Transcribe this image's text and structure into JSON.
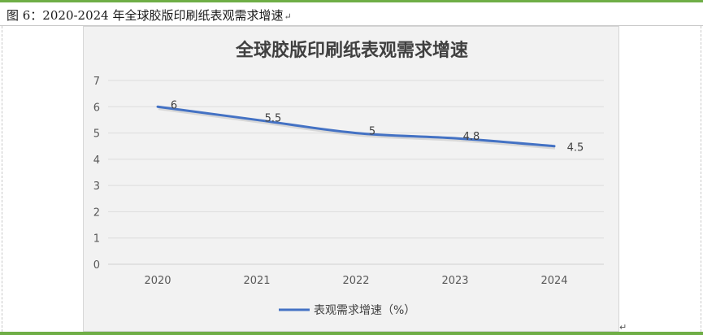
{
  "caption": {
    "text": "图 6：2020-2024 年全球胶版印刷纸表观需求增速",
    "paragraph_mark": "↵"
  },
  "end_mark": "↵",
  "chart_data": {
    "type": "line",
    "title": "全球胶版印刷纸表观需求增速",
    "categories": [
      "2020",
      "2021",
      "2022",
      "2023",
      "2024"
    ],
    "series": [
      {
        "name": "表观需求增速（%）",
        "values": [
          6,
          5.5,
          5,
          4.8,
          4.5
        ],
        "color": "#4472c4"
      }
    ],
    "data_labels": [
      "6",
      "5.5",
      "5",
      "4.8",
      "4.5"
    ],
    "y_ticks": [
      "0",
      "1",
      "2",
      "3",
      "4",
      "5",
      "6",
      "7"
    ],
    "ylim": [
      0,
      7
    ],
    "grid": true,
    "legend_position": "bottom"
  },
  "colors": {
    "accent_green": "#6fae46",
    "chart_background": "#f2f2f2",
    "line_blue": "#4472c4"
  }
}
